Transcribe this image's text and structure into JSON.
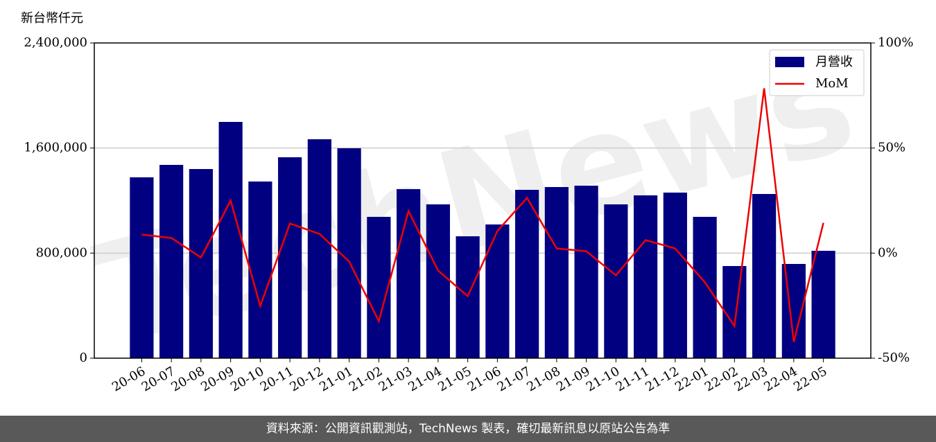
{
  "chart_data": {
    "type": "bar-line",
    "y_label": "新台幣仟元",
    "watermark": "TechNews",
    "categories": [
      "20-06",
      "20-07",
      "20-08",
      "20-09",
      "20-10",
      "20-11",
      "20-12",
      "21-01",
      "21-02",
      "21-03",
      "21-04",
      "21-05",
      "21-06",
      "21-07",
      "21-08",
      "21-09",
      "21-10",
      "21-11",
      "21-12",
      "22-01",
      "22-02",
      "22-03",
      "22-04",
      "22-05"
    ],
    "series": [
      {
        "name": "月營收",
        "type": "bar",
        "color": "#000080",
        "values": [
          1377000,
          1471600,
          1440000,
          1798700,
          1345000,
          1529700,
          1666800,
          1598200,
          1076000,
          1287000,
          1171000,
          928000,
          1018000,
          1281800,
          1302900,
          1313400,
          1171000,
          1239600,
          1260700,
          1076000,
          701500,
          1250100,
          717400,
          817600
        ]
      },
      {
        "name": "MoM",
        "type": "line",
        "axis": "y2",
        "color": "#ee0000",
        "values": [
          8.8,
          7.2,
          -2.1,
          25.0,
          -25.2,
          14.1,
          9.1,
          -4.0,
          -32.4,
          20.0,
          -8.3,
          -20.5,
          10.5,
          26.3,
          2.2,
          0.9,
          -10.6,
          6.2,
          2.2,
          -13.9,
          -34.7,
          78.4,
          -42.3,
          14.4
        ]
      }
    ],
    "ylim": [
      0,
      2400000
    ],
    "yticks": [
      0,
      {
        "value": 800000,
        "label": "800,000"
      },
      {
        "value": 1600000,
        "label": "1,600,000"
      },
      {
        "value": 2400000,
        "label": "2,400,000"
      }
    ],
    "y2lim": [
      -50,
      100
    ],
    "y2ticks": [
      {
        "value": -50,
        "label": "-50%"
      },
      {
        "value": 0,
        "label": "0%"
      },
      {
        "value": 50,
        "label": "50%"
      },
      {
        "value": 100,
        "label": "100%"
      }
    ],
    "grid": true,
    "legend": "upper right"
  },
  "footer": "資料來源：公開資訊觀測站，TechNews 製表，確切最新訊息以原站公告為準"
}
